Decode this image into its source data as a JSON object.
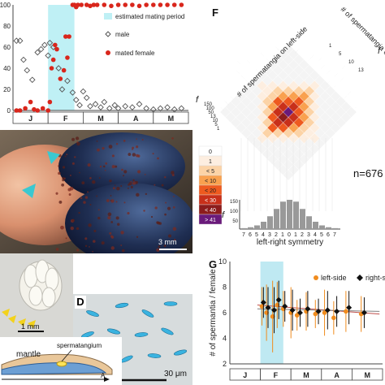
{
  "panels": {
    "photo_top": {
      "scale_text": "3 mm"
    },
    "photo_c": {
      "scale_text": "1 mm"
    },
    "photo_d": {
      "letter": "D",
      "scale_text": "30 μm"
    },
    "schematic": {
      "mantle": "mantle",
      "spermatangium": "spermatangium",
      "arrow_label": "A"
    },
    "F": {
      "letter": "F",
      "n_text": "n=676",
      "left_axis": "# of spermatangia on left-side",
      "right_axis": "# of spermatangia on right-side",
      "bottom_axis": "left-right symmetry",
      "f_label": "f"
    },
    "G": {
      "letter": "G",
      "ylabel": "# of spermantia / female"
    }
  },
  "colorbar": {
    "levels": [
      "0",
      "1",
      "< 5",
      "< 10",
      "< 20",
      "< 30",
      "< 40",
      "> 41"
    ],
    "colors": [
      "#ffffff",
      "#fdeee0",
      "#fcd3a6",
      "#f9a14f",
      "#ee5a1f",
      "#c8301a",
      "#8c1c1c",
      "#6a1a7a"
    ]
  },
  "chart_data": [
    {
      "type": "scatter",
      "title": "",
      "months": [
        "J",
        "F",
        "M",
        "A",
        "M"
      ],
      "ytick_labels": [
        "0",
        "20",
        "40",
        "60",
        "80",
        "100"
      ],
      "ylim": [
        0,
        100
      ],
      "shaded_region": {
        "label": "estimated mating period",
        "x_range": [
          1.0,
          1.75
        ],
        "color": "#bff0f5"
      },
      "series": [
        {
          "name": "male",
          "marker": "diamond-open",
          "points": [
            [
              0.1,
              66
            ],
            [
              0.2,
              66
            ],
            [
              0.3,
              48
            ],
            [
              0.4,
              38
            ],
            [
              0.55,
              29
            ],
            [
              0.7,
              55
            ],
            [
              0.8,
              58
            ],
            [
              0.9,
              62
            ],
            [
              1.0,
              52
            ],
            [
              1.05,
              64
            ],
            [
              1.15,
              60
            ],
            [
              1.3,
              40
            ],
            [
              1.4,
              20
            ],
            [
              1.55,
              28
            ],
            [
              1.7,
              17
            ],
            [
              1.8,
              10
            ],
            [
              1.9,
              5
            ],
            [
              2.0,
              18
            ],
            [
              2.1,
              12
            ],
            [
              2.2,
              4
            ],
            [
              2.35,
              6
            ],
            [
              2.5,
              3
            ],
            [
              2.6,
              8
            ],
            [
              2.75,
              2
            ],
            [
              2.9,
              5
            ],
            [
              3.0,
              2
            ],
            [
              3.2,
              4
            ],
            [
              3.4,
              3
            ],
            [
              3.6,
              6
            ],
            [
              3.8,
              2
            ],
            [
              4.0,
              1
            ],
            [
              4.2,
              2
            ],
            [
              4.4,
              3
            ],
            [
              4.6,
              1
            ],
            [
              4.8,
              2
            ]
          ]
        },
        {
          "name": "mated female",
          "marker": "circle-filled",
          "color": "#d9261c",
          "points": [
            [
              0.1,
              0
            ],
            [
              0.2,
              0
            ],
            [
              0.35,
              2
            ],
            [
              0.5,
              8
            ],
            [
              0.6,
              1
            ],
            [
              0.7,
              0
            ],
            [
              0.85,
              2
            ],
            [
              1.0,
              0
            ],
            [
              1.05,
              8
            ],
            [
              1.1,
              40
            ],
            [
              1.15,
              48
            ],
            [
              1.2,
              62
            ],
            [
              1.25,
              58
            ],
            [
              1.35,
              30
            ],
            [
              1.45,
              38
            ],
            [
              1.5,
              70
            ],
            [
              1.55,
              50
            ],
            [
              1.6,
              70
            ],
            [
              1.7,
              100
            ],
            [
              1.75,
              100
            ],
            [
              1.8,
              98
            ],
            [
              1.85,
              100
            ],
            [
              1.95,
              100
            ],
            [
              2.1,
              100
            ],
            [
              2.2,
              99
            ],
            [
              2.3,
              100
            ],
            [
              2.4,
              100
            ],
            [
              2.6,
              100
            ],
            [
              2.8,
              99
            ],
            [
              3.0,
              100
            ],
            [
              3.2,
              100
            ],
            [
              3.4,
              100
            ],
            [
              3.6,
              99
            ],
            [
              3.8,
              100
            ],
            [
              4.0,
              100
            ],
            [
              4.2,
              100
            ],
            [
              4.4,
              100
            ],
            [
              4.6,
              100
            ],
            [
              4.8,
              100
            ]
          ]
        }
      ]
    },
    {
      "type": "heatmap",
      "description_axes": [
        "left-side count bins",
        "right-side count bins"
      ],
      "left_ticks": [
        "150",
        "100",
        "50",
        "13",
        "10",
        "5",
        "1"
      ],
      "right_ticks": [
        "1",
        "5",
        "10",
        "13"
      ],
      "symmetry_ticks": [
        "7",
        "6",
        "5",
        "4",
        "3",
        "2",
        "1",
        "0",
        "1",
        "2",
        "3",
        "4",
        "5",
        "6",
        "7"
      ],
      "f_ticks": [
        "150",
        "100",
        "50"
      ],
      "grid": [
        [
          0,
          0,
          0,
          0,
          0,
          0,
          0,
          0,
          0,
          0,
          0,
          0,
          0
        ],
        [
          0,
          0,
          0,
          0,
          0,
          0,
          1,
          0,
          0,
          0,
          0,
          0,
          0
        ],
        [
          0,
          0,
          0,
          0,
          0,
          1,
          2,
          1,
          0,
          0,
          0,
          0,
          0
        ],
        [
          0,
          0,
          0,
          0,
          1,
          2,
          3,
          2,
          1,
          0,
          0,
          0,
          0
        ],
        [
          0,
          0,
          0,
          1,
          2,
          3,
          4,
          3,
          2,
          1,
          0,
          0,
          0
        ],
        [
          0,
          0,
          1,
          2,
          3,
          4,
          5,
          4,
          3,
          2,
          1,
          0,
          0
        ],
        [
          0,
          1,
          1,
          2,
          4,
          5,
          7,
          5,
          4,
          2,
          1,
          1,
          0
        ],
        [
          0,
          0,
          1,
          2,
          3,
          5,
          6,
          5,
          3,
          2,
          1,
          0,
          0
        ],
        [
          0,
          0,
          0,
          1,
          2,
          4,
          5,
          4,
          2,
          1,
          0,
          0,
          0
        ],
        [
          0,
          0,
          0,
          0,
          1,
          2,
          4,
          2,
          1,
          0,
          0,
          0,
          0
        ],
        [
          0,
          0,
          0,
          0,
          0,
          1,
          2,
          1,
          0,
          0,
          0,
          0,
          0
        ],
        [
          0,
          0,
          0,
          0,
          0,
          0,
          1,
          0,
          0,
          0,
          0,
          0,
          0
        ],
        [
          0,
          0,
          0,
          0,
          0,
          0,
          0,
          0,
          0,
          0,
          0,
          0,
          0
        ]
      ],
      "marginal_left": [
        10,
        14,
        22,
        40,
        60,
        90,
        120,
        140,
        110,
        80,
        50,
        30,
        15
      ],
      "marginal_right": [
        12,
        16,
        25,
        45,
        70,
        100,
        130,
        150,
        115,
        85,
        55,
        32,
        18
      ],
      "marginal_symmetry": [
        5,
        10,
        20,
        40,
        70,
        110,
        150,
        160,
        150,
        110,
        70,
        40,
        20,
        10,
        5
      ]
    },
    {
      "type": "scatter",
      "title": "",
      "ylabel": "# of spermantia / female",
      "months": [
        "J",
        "F",
        "M",
        "A",
        "M"
      ],
      "ytick_labels": [
        "2",
        "4",
        "6",
        "8",
        "10"
      ],
      "ylim": [
        2,
        10
      ],
      "shaded_region": {
        "x_range": [
          1.0,
          1.75
        ],
        "color": "#bfe9f2"
      },
      "series": [
        {
          "name": "left-side",
          "marker": "circle-filled",
          "color": "#f08c1e",
          "points": [
            [
              1.05,
              6.5
            ],
            [
              1.2,
              6.0
            ],
            [
              1.4,
              5.7
            ],
            [
              1.55,
              6.6
            ],
            [
              1.75,
              6.3
            ],
            [
              2.0,
              6.0
            ],
            [
              2.2,
              5.8
            ],
            [
              2.5,
              6.1
            ],
            [
              2.8,
              5.9
            ],
            [
              3.1,
              6.0
            ],
            [
              3.4,
              5.6
            ],
            [
              3.8,
              6.1
            ],
            [
              4.3,
              5.9
            ]
          ],
          "err": [
            1.5,
            2.2,
            2.8,
            1.8,
            1.4,
            2.0,
            1.2,
            1.5,
            1.1,
            1.8,
            1.3,
            1.6,
            1.4
          ]
        },
        {
          "name": "right-side",
          "marker": "diamond-filled",
          "color": "#111111",
          "points": [
            [
              1.1,
              6.8
            ],
            [
              1.25,
              6.4
            ],
            [
              1.45,
              6.2
            ],
            [
              1.6,
              7.0
            ],
            [
              1.8,
              6.5
            ],
            [
              2.05,
              6.2
            ],
            [
              2.3,
              6.0
            ],
            [
              2.55,
              6.3
            ],
            [
              2.9,
              6.1
            ],
            [
              3.2,
              6.2
            ],
            [
              3.5,
              6.1
            ],
            [
              3.9,
              6.4
            ],
            [
              4.4,
              6.0
            ]
          ],
          "err": [
            1.2,
            1.6,
            1.8,
            1.5,
            1.2,
            1.6,
            1.1,
            1.4,
            1.0,
            1.5,
            1.2,
            1.3,
            1.2
          ]
        }
      ],
      "trendlines": [
        {
          "color": "#c0504d",
          "y": [
            6.6,
            5.9
          ]
        },
        {
          "color": "#7f7f7f",
          "y": [
            6.3,
            6.1
          ]
        }
      ]
    }
  ]
}
